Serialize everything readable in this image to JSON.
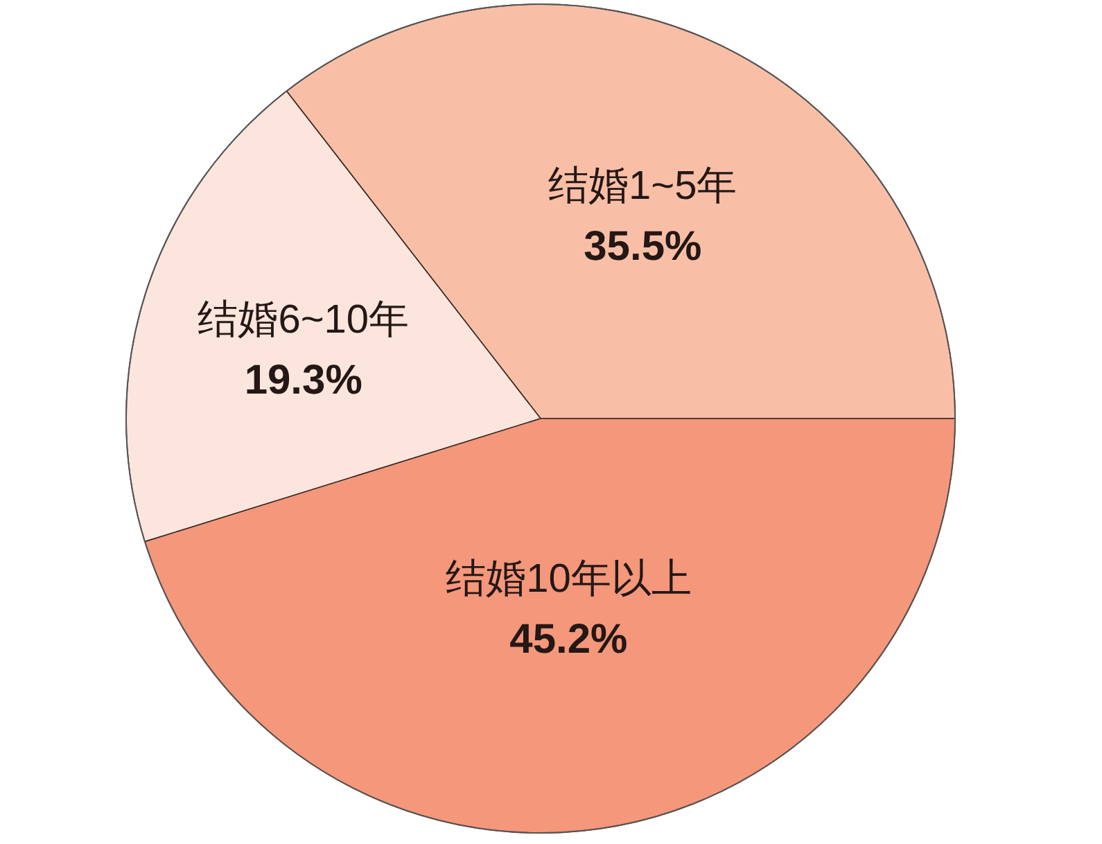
{
  "chart_data": {
    "type": "pie",
    "categories": [
      "结婚1~5年",
      "结婚6~10年",
      "结婚10年以上"
    ],
    "values": [
      35.5,
      19.3,
      45.2
    ],
    "colors": [
      "#f9bfa6",
      "#fce5dc",
      "#f5977a"
    ],
    "value_labels": [
      "35.5%",
      "19.3%",
      "45.2%"
    ]
  }
}
